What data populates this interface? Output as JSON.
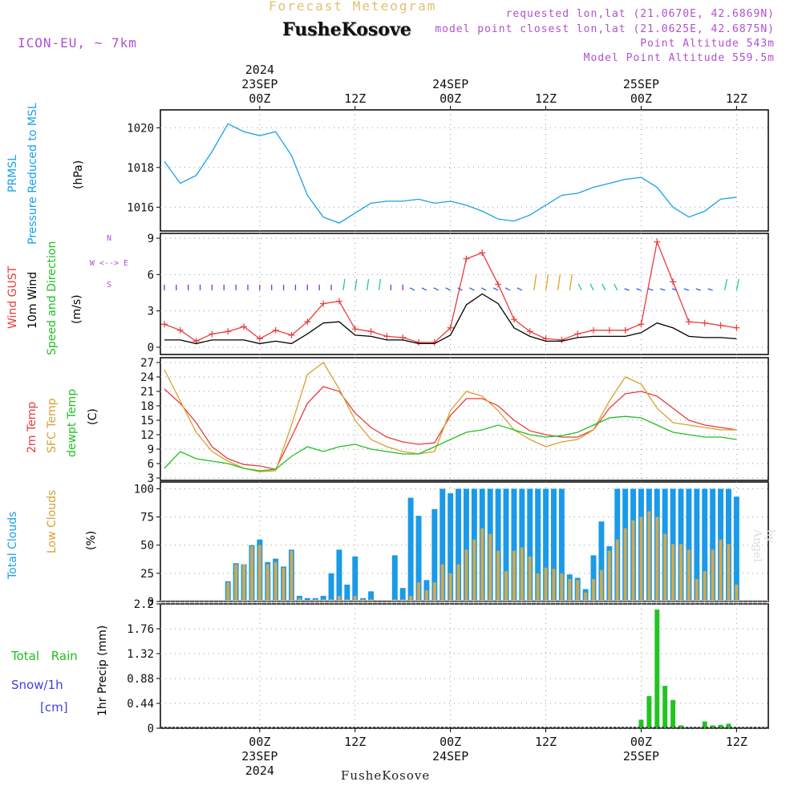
{
  "header": {
    "title": "Forecast Meteogram",
    "station": "FusheKosove",
    "model": "ICON-EU, ~ 7km",
    "requested": "requested lon,lat (21.0670E, 42.6869N)",
    "closest": "model point closest lon,lat (21.0625E, 42.6875N)",
    "altitude": "Point Altitude 543m",
    "model_altitude": "Model Point Altitude 559.5m",
    "footer": "FusheKosove",
    "watermark": "by Angel"
  },
  "colors": {
    "pressure": "#1aa0e8",
    "gust": "#e83c3c",
    "wind": "#000000",
    "temp2m": "#e83c3c",
    "sfc": "#d8a030",
    "dewpt": "#20c020",
    "total_clouds": "#1a9ae8",
    "low_clouds": "#d0a850",
    "rain": "#22c422",
    "snow": "#4040e0",
    "label_blue": "#1aa0e8",
    "label_purple": "#b050d0"
  },
  "labels": {
    "pressure": [
      "PRMSL",
      "Pressure Reduced to MSL",
      "(hPa)"
    ],
    "wind": [
      "Wind GUST",
      "10m Wind",
      "Speed and Direction",
      "(m/s)"
    ],
    "compass": "N W <--> E S",
    "temp": [
      "2m Temp",
      "SFC Temp",
      "dewpt Temp",
      "(C)"
    ],
    "clouds": [
      "Total Clouds",
      "Low Clouds",
      "(%)"
    ],
    "precip": [
      "Total Rain",
      "Snow/1h",
      "[cm]",
      "1hr Precip (mm)"
    ]
  },
  "chart_data": [
    {
      "type": "line",
      "ylim": [
        1014.8,
        1020.9
      ],
      "yticks": [
        "1016",
        "1018",
        "1020"
      ],
      "ytick_values": [
        1016,
        1018,
        1020
      ],
      "x": [
        0,
        2,
        4,
        6,
        8,
        10,
        12,
        14,
        16,
        18,
        20,
        22,
        24,
        26,
        28,
        30,
        32,
        34,
        36,
        38,
        40,
        42,
        44,
        46,
        48,
        50,
        52,
        54,
        56,
        58,
        60,
        62,
        64,
        66,
        68,
        70,
        72
      ],
      "series": [
        {
          "values": [
            1018.3,
            1017.2,
            1017.6,
            1018.8,
            1020.2,
            1019.8,
            1019.6,
            1019.8,
            1018.6,
            1016.6,
            1015.5,
            1015.2,
            1015.7,
            1016.2,
            1016.3,
            1016.3,
            1016.4,
            1016.2,
            1016.3,
            1016.1,
            1015.8,
            1015.4,
            1015.3,
            1015.6,
            1016.1,
            1016.6,
            1016.7,
            1017.0,
            1017.2,
            1017.4,
            1017.5,
            1017.0,
            1016.0,
            1015.5,
            1015.8,
            1016.4,
            1016.5
          ]
        }
      ]
    },
    {
      "type": "line",
      "ylim": [
        -0.6,
        9.4
      ],
      "yticks": [
        "0",
        "3",
        "6",
        "9"
      ],
      "ytick_values": [
        0,
        3,
        6,
        9
      ],
      "x": [
        0,
        2,
        4,
        6,
        8,
        10,
        12,
        14,
        16,
        18,
        20,
        22,
        24,
        26,
        28,
        30,
        32,
        34,
        36,
        38,
        40,
        42,
        44,
        46,
        48,
        50,
        52,
        54,
        56,
        58,
        60,
        62,
        64,
        66,
        68,
        70,
        72
      ],
      "series": [
        {
          "name": "Wind GUST",
          "values": [
            1.9,
            1.4,
            0.5,
            1.1,
            1.3,
            1.7,
            0.7,
            1.4,
            1.0,
            2.1,
            3.6,
            3.8,
            1.5,
            1.3,
            0.9,
            0.8,
            0.4,
            0.4,
            1.6,
            7.3,
            7.8,
            5.2,
            2.3,
            1.3,
            0.7,
            0.6,
            1.1,
            1.4,
            1.4,
            1.4,
            1.9,
            8.7,
            5.4,
            2.1,
            2.0,
            1.8,
            1.6
          ]
        },
        {
          "name": "10m Wind",
          "values": [
            0.6,
            0.6,
            0.3,
            0.6,
            0.6,
            0.6,
            0.3,
            0.5,
            0.3,
            1.1,
            2.0,
            2.1,
            1.0,
            0.9,
            0.6,
            0.6,
            0.3,
            0.3,
            1.0,
            3.5,
            4.4,
            3.6,
            1.6,
            0.9,
            0.5,
            0.5,
            0.8,
            0.9,
            0.9,
            0.9,
            1.2,
            2.0,
            1.6,
            0.9,
            0.8,
            0.8,
            0.7
          ]
        }
      ]
    },
    {
      "type": "line",
      "ylim": [
        2.5,
        28
      ],
      "yticks": [
        "3",
        "6",
        "9",
        "12",
        "15",
        "18",
        "21",
        "24",
        "27"
      ],
      "ytick_values": [
        3,
        6,
        9,
        12,
        15,
        18,
        21,
        24,
        27
      ],
      "x": [
        0,
        2,
        4,
        6,
        8,
        10,
        12,
        14,
        16,
        18,
        20,
        22,
        24,
        26,
        28,
        30,
        32,
        34,
        36,
        38,
        40,
        42,
        44,
        46,
        48,
        50,
        52,
        54,
        56,
        58,
        60,
        62,
        64,
        66,
        68,
        70,
        72
      ],
      "series": [
        {
          "name": "2m Temp",
          "values": [
            21.5,
            18.5,
            14.5,
            9.5,
            7.0,
            5.8,
            5.5,
            4.8,
            11.5,
            18.5,
            22.0,
            21.0,
            16.5,
            13.5,
            11.5,
            10.5,
            10.0,
            10.3,
            16.0,
            19.5,
            19.5,
            18.0,
            15.0,
            12.8,
            12.0,
            11.5,
            11.5,
            13.0,
            17.5,
            20.5,
            21.0,
            20.0,
            17.5,
            15,
            14,
            13.5,
            13
          ]
        },
        {
          "name": "SFC Temp",
          "values": [
            25.5,
            19.0,
            12.5,
            8.5,
            6.5,
            5.0,
            4.3,
            4.5,
            14.0,
            24.5,
            27.0,
            21.5,
            15.0,
            11.0,
            9.5,
            8.5,
            8.0,
            8.5,
            17.0,
            21.0,
            20.0,
            17.0,
            13.0,
            11.0,
            9.5,
            10.5,
            11.0,
            13.0,
            19.0,
            24.0,
            22.5,
            17.5,
            14.5,
            14,
            13.5,
            13,
            13
          ]
        },
        {
          "name": "dewpt Temp",
          "values": [
            5.0,
            8.5,
            7.0,
            6.5,
            6.0,
            5.0,
            4.5,
            4.8,
            7.5,
            9.5,
            8.5,
            9.5,
            10.0,
            9.0,
            8.5,
            8.0,
            8.0,
            9.5,
            11.0,
            12.5,
            13.0,
            14.0,
            13.0,
            12.0,
            11.5,
            11.8,
            12.5,
            14.0,
            15.5,
            15.8,
            15.5,
            14.0,
            12.5,
            12,
            11.5,
            11.5,
            11
          ]
        }
      ]
    },
    {
      "type": "bar",
      "ylim": [
        0,
        106
      ],
      "yticks": [
        "0",
        "25",
        "50",
        "75",
        "100"
      ],
      "ytick_values": [
        0,
        25,
        50,
        75,
        100
      ],
      "x": [
        0,
        1,
        2,
        3,
        4,
        5,
        6,
        7,
        8,
        9,
        10,
        11,
        12,
        13,
        14,
        15,
        16,
        17,
        18,
        19,
        20,
        21,
        22,
        23,
        24,
        25,
        26,
        27,
        28,
        29,
        30,
        31,
        32,
        33,
        34,
        35,
        36,
        37,
        38,
        39,
        40,
        41,
        42,
        43,
        44,
        45,
        46,
        47,
        48,
        49,
        50,
        51,
        52,
        53,
        54,
        55,
        56,
        57,
        58,
        59,
        60,
        61,
        62,
        63,
        64,
        65,
        66,
        67,
        68,
        69,
        70,
        71,
        72
      ],
      "series": [
        {
          "name": "Total Clouds",
          "values": [
            0,
            0,
            0,
            0,
            0,
            0,
            0,
            0,
            18,
            34,
            33,
            50,
            55,
            35,
            38,
            31,
            46,
            5,
            3,
            3,
            5,
            25,
            46,
            15,
            40,
            3,
            9,
            0,
            0,
            41,
            12,
            92,
            76,
            19,
            82,
            100,
            96,
            100,
            100,
            100,
            100,
            100,
            100,
            100,
            100,
            100,
            100,
            100,
            100,
            100,
            100,
            24,
            21,
            11,
            41,
            71,
            49,
            100,
            100,
            100,
            100,
            100,
            100,
            100,
            100,
            100,
            100,
            100,
            100,
            100,
            100,
            100,
            93
          ]
        },
        {
          "name": "Low Clouds",
          "values": [
            0,
            0,
            0,
            0,
            0,
            0,
            0,
            0,
            17,
            33,
            33,
            49,
            50,
            33,
            35,
            30,
            45,
            3,
            1,
            2,
            2,
            2,
            5,
            2,
            5,
            2,
            2,
            0,
            0,
            2,
            2,
            5,
            17,
            10,
            17,
            33,
            25,
            33,
            46,
            55,
            65,
            60,
            45,
            27,
            45,
            48,
            40,
            25,
            30,
            29,
            25,
            20,
            19,
            8,
            20,
            28,
            45,
            55,
            65,
            72,
            75,
            80,
            75,
            60,
            51,
            51,
            46,
            20,
            27,
            46,
            55,
            51,
            15
          ]
        }
      ]
    },
    {
      "type": "bar",
      "ylim": [
        0,
        2.2
      ],
      "yticks": [
        "0",
        "0.44",
        "0.88",
        "1.32",
        "1.76",
        "2.2"
      ],
      "ytick_values": [
        0,
        0.44,
        0.88,
        1.32,
        1.76,
        2.2
      ],
      "x": [
        60,
        61,
        62,
        63,
        64,
        65,
        66,
        67,
        68,
        69,
        70,
        71,
        72
      ],
      "series": [
        {
          "name": "Total Rain",
          "values": [
            0.15,
            0.57,
            2.1,
            0.75,
            0.5,
            0.05,
            0,
            0,
            0.12,
            0.05,
            0.06,
            0.08,
            0
          ]
        }
      ]
    }
  ],
  "time_axis": {
    "top": [
      {
        "h": 0,
        "lines": [
          "2024",
          "23SEP",
          "00Z"
        ]
      },
      {
        "h": 12,
        "lines": [
          "12Z"
        ]
      },
      {
        "h": 24,
        "lines": [
          "24SEP",
          "00Z"
        ]
      },
      {
        "h": 36,
        "lines": [
          "12Z"
        ]
      },
      {
        "h": 48,
        "lines": [
          "25SEP",
          "00Z"
        ]
      },
      {
        "h": 60,
        "lines": [
          "12Z"
        ]
      }
    ],
    "bottom": [
      {
        "h": 0,
        "lines": [
          "00Z",
          "23SEP",
          "2024"
        ]
      },
      {
        "h": 12,
        "lines": [
          "12Z"
        ]
      },
      {
        "h": 24,
        "lines": [
          "00Z",
          "24SEP"
        ]
      },
      {
        "h": 36,
        "lines": [
          "12Z"
        ]
      },
      {
        "h": 48,
        "lines": [
          "00Z",
          "25SEP"
        ]
      },
      {
        "h": 60,
        "lines": [
          "12Z"
        ]
      }
    ]
  }
}
